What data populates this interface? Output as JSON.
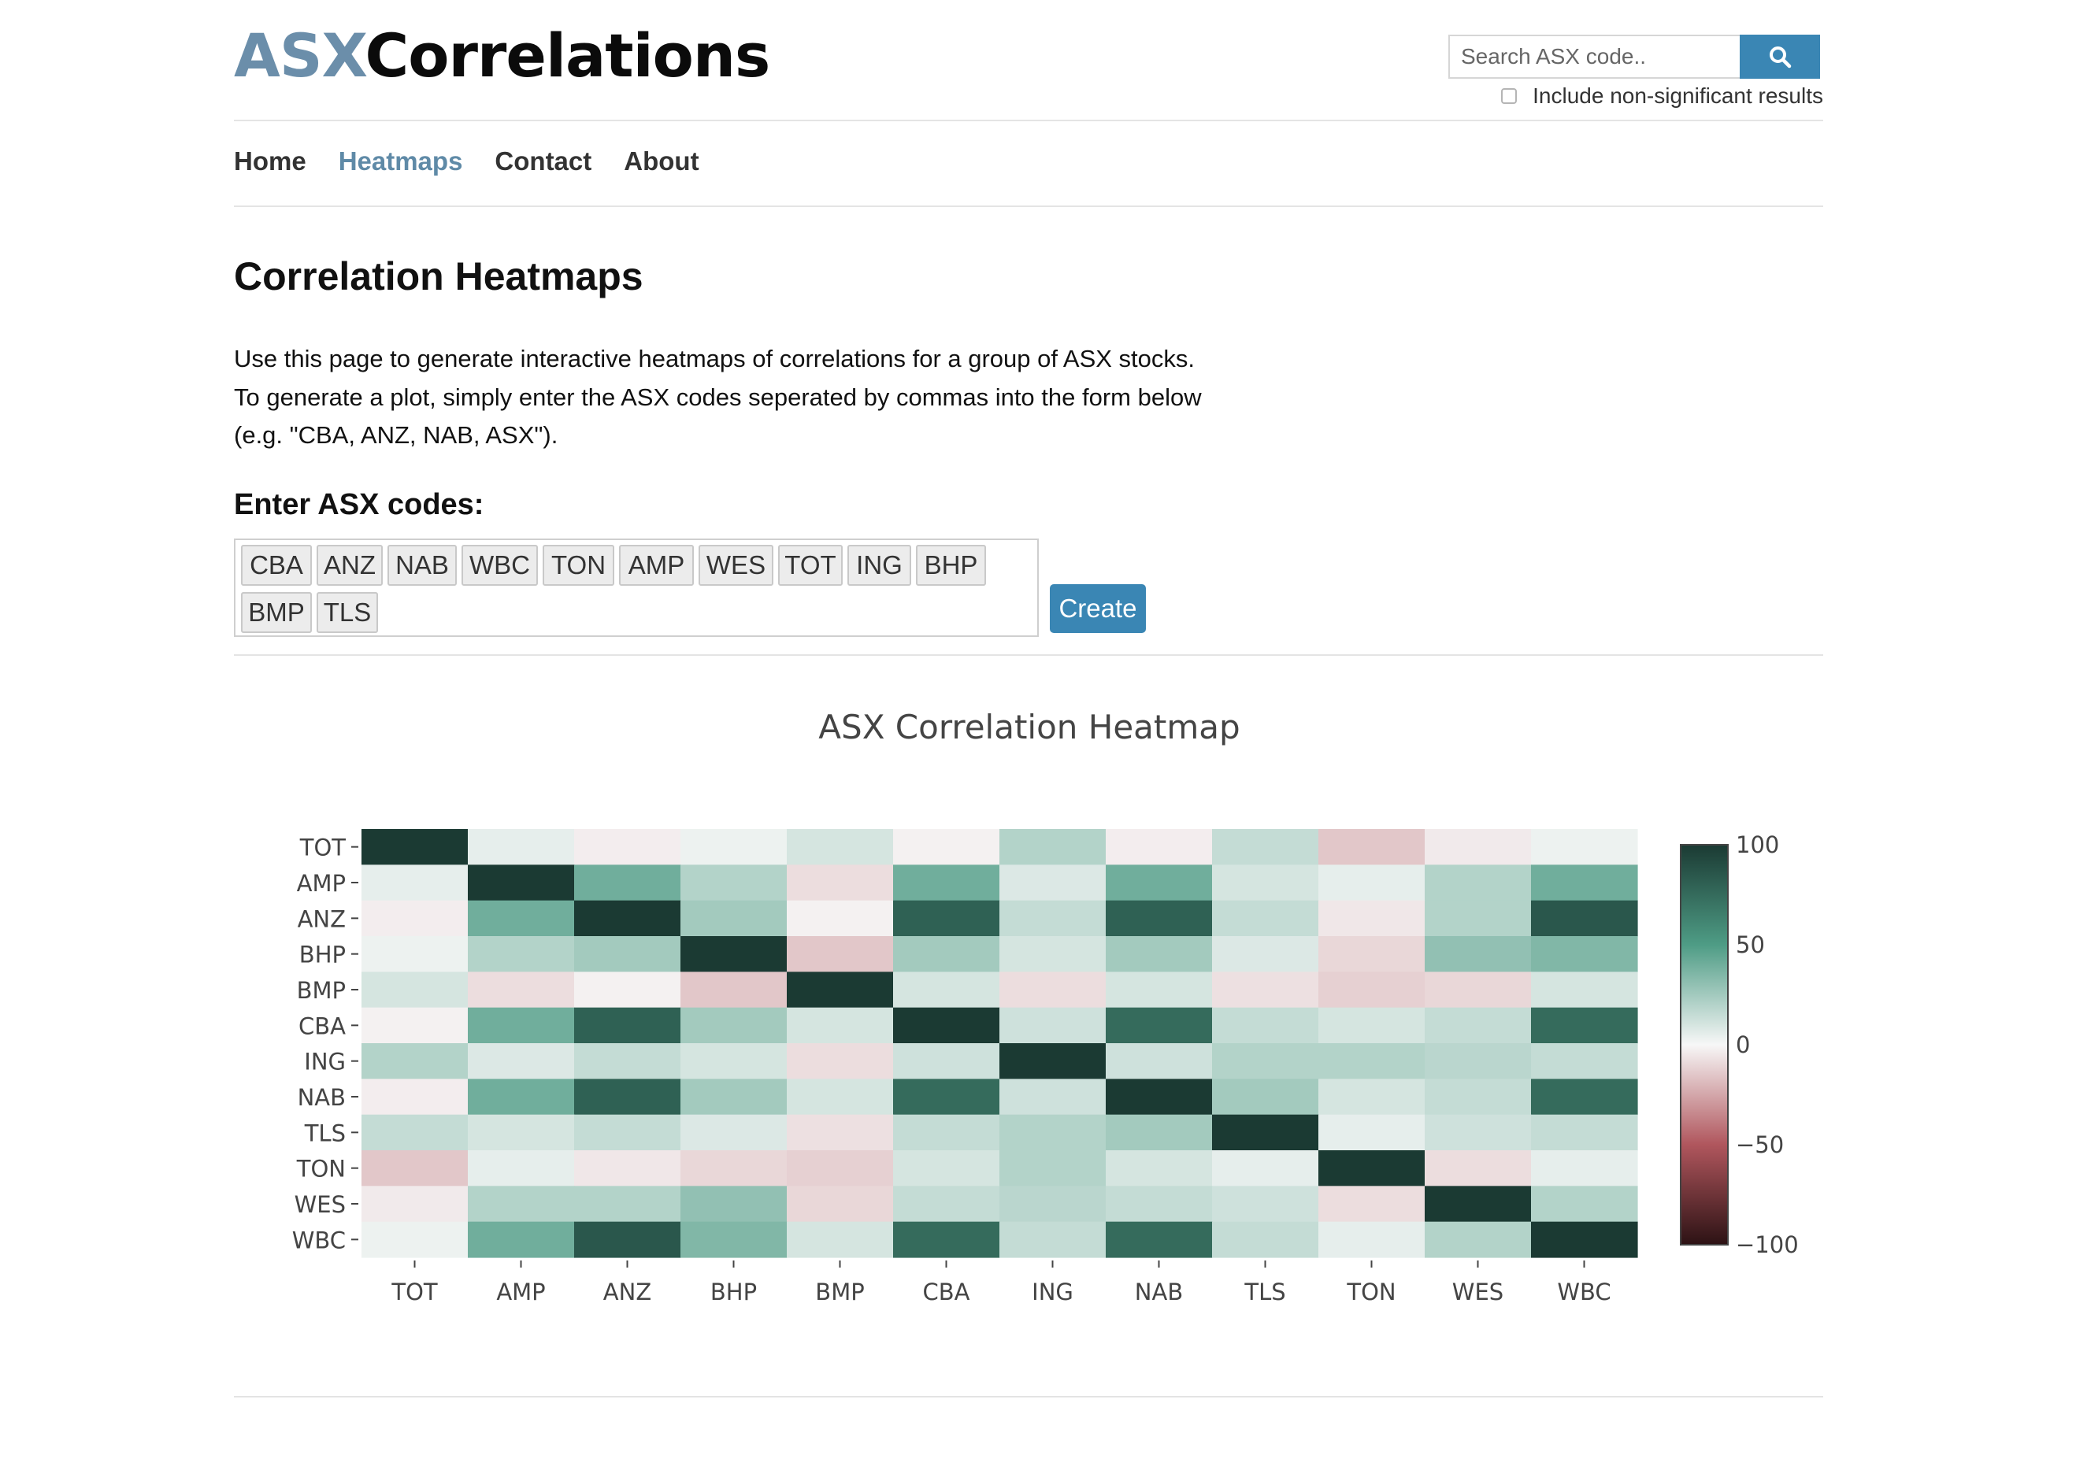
{
  "header": {
    "logo_part1": "ASX",
    "logo_part2": "Correlations",
    "search_placeholder": "Search ASX code..",
    "search_icon": "search-icon",
    "nonsig_label": "Include non-significant results",
    "nonsig_checked": false
  },
  "nav": {
    "items": [
      "Home",
      "Heatmaps",
      "Contact",
      "About"
    ],
    "active": "Heatmaps"
  },
  "main": {
    "title": "Correlation Heatmaps",
    "description": [
      "Use this page to generate interactive heatmaps of correlations for a group of ASX stocks.",
      "To generate a plot, simply enter the ASX codes seperated by commas into the form below",
      "(e.g. \"CBA, ANZ, NAB, ASX\")."
    ],
    "input_label": "Enter ASX codes:",
    "tags": [
      "CBA",
      "ANZ",
      "NAB",
      "WBC",
      "TON",
      "AMP",
      "WES",
      "TOT",
      "ING",
      "BHP",
      "BMP",
      "TLS"
    ],
    "create_label": "Create"
  },
  "colors": {
    "accent": "#3a86b4",
    "logo_accent": "#6b8eaa",
    "nav_active": "#5f8aa7"
  },
  "chart_data": {
    "type": "heatmap",
    "title": "ASX Correlation Heatmap",
    "x": [
      "TOT",
      "AMP",
      "ANZ",
      "BHP",
      "BMP",
      "CBA",
      "ING",
      "NAB",
      "TLS",
      "TON",
      "WES",
      "WBC"
    ],
    "y": [
      "TOT",
      "AMP",
      "ANZ",
      "BHP",
      "BMP",
      "CBA",
      "ING",
      "NAB",
      "TLS",
      "TON",
      "WES",
      "WBC"
    ],
    "z": [
      [
        100,
        5,
        -3,
        3,
        10,
        -2,
        20,
        -3,
        15,
        -15,
        -4,
        3
      ],
      [
        5,
        100,
        40,
        20,
        -8,
        40,
        8,
        40,
        10,
        5,
        20,
        40
      ],
      [
        -3,
        40,
        100,
        25,
        -2,
        80,
        15,
        80,
        15,
        -5,
        20,
        85
      ],
      [
        3,
        20,
        25,
        100,
        -15,
        25,
        10,
        25,
        8,
        -10,
        30,
        35
      ],
      [
        10,
        -8,
        -2,
        -15,
        100,
        10,
        -8,
        10,
        -7,
        -12,
        -10,
        10
      ],
      [
        -2,
        40,
        80,
        25,
        10,
        100,
        12,
        75,
        15,
        10,
        15,
        75
      ],
      [
        20,
        8,
        15,
        10,
        -8,
        12,
        100,
        12,
        20,
        20,
        18,
        15
      ],
      [
        -3,
        40,
        80,
        25,
        10,
        75,
        12,
        100,
        25,
        10,
        15,
        75
      ],
      [
        15,
        10,
        15,
        8,
        -7,
        15,
        20,
        25,
        100,
        5,
        12,
        15
      ],
      [
        -15,
        5,
        -5,
        -10,
        -12,
        10,
        20,
        10,
        5,
        100,
        -8,
        5
      ],
      [
        -4,
        20,
        20,
        30,
        -10,
        15,
        18,
        15,
        12,
        -8,
        100,
        20
      ],
      [
        3,
        40,
        85,
        35,
        10,
        75,
        15,
        75,
        15,
        5,
        20,
        100
      ]
    ],
    "zmin": -100,
    "zmax": 100,
    "colorbar_ticks": [
      100,
      50,
      0,
      -50,
      -100
    ],
    "colorscale": [
      "#2c1214",
      "#b0565d",
      "#f7f7f7",
      "#4e9c85",
      "#1b3a33"
    ],
    "grid": false,
    "legend": "colorbar-right"
  }
}
